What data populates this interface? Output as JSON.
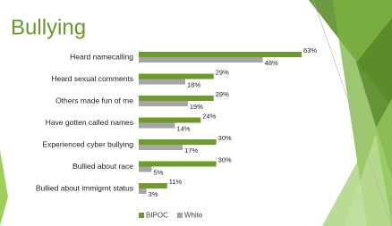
{
  "chart_data": {
    "type": "hbar",
    "title": "Bullying",
    "categories": [
      "Heard namecalling",
      "Heard sexual comments",
      "Others made fun of me",
      "Have gotten called names",
      "Experienced cyber bullying",
      "Bullied about race",
      "Bullied about immigrnt status"
    ],
    "series": [
      {
        "name": "BIPOC",
        "color": "#6e9b2c",
        "values": [
          63,
          29,
          29,
          24,
          30,
          30,
          11
        ],
        "value_labels": [
          "63%",
          "29%",
          "29%",
          "24%",
          "30%",
          "30%",
          "11%"
        ]
      },
      {
        "name": "White",
        "color": "#a6a6a6",
        "values": [
          48,
          18,
          19,
          14,
          17,
          5,
          3
        ],
        "value_labels": [
          "48%",
          "18%",
          "19%",
          "14%",
          "17%",
          "5%",
          "3%"
        ]
      }
    ]
  }
}
